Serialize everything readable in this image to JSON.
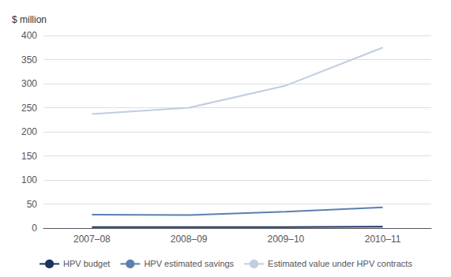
{
  "chart_data": {
    "type": "line",
    "ylabel": "$ million",
    "categories": [
      "2007–08",
      "2008–09",
      "2009–10",
      "2010–11"
    ],
    "series": [
      {
        "name": "HPV budget",
        "color": "#1a3362",
        "values": [
          2,
          2,
          2,
          3
        ]
      },
      {
        "name": "HPV estimated savings",
        "color": "#5b7fae",
        "values": [
          28,
          27,
          34,
          43
        ]
      },
      {
        "name": "Estimated value under HPV contracts",
        "color": "#c0cde0",
        "values": [
          237,
          250,
          296,
          375
        ]
      }
    ],
    "ylim": [
      0,
      400
    ],
    "yticks": [
      0,
      50,
      100,
      150,
      200,
      250,
      300,
      350,
      400
    ],
    "grid": true,
    "legend": "bottom"
  }
}
